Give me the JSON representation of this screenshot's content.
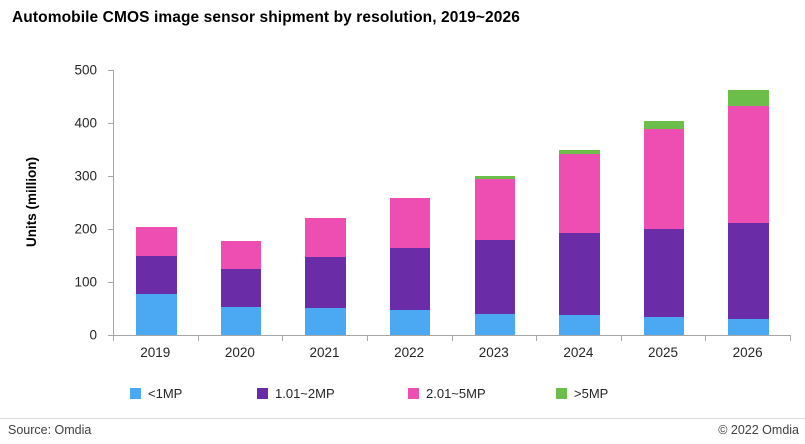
{
  "title": "Automobile CMOS image sensor shipment by resolution, 2019~2026",
  "footer": {
    "source": "Source: Omdia",
    "copyright": "© 2022 Omdia"
  },
  "colors": {
    "axis": "#A6A6A6",
    "series_lt1mp": "#4AA9F2",
    "series_1_2mp": "#6B2CA8",
    "series_2_5mp": "#EE4DB2",
    "series_gt5mp": "#6CBE4A"
  },
  "chart_data": {
    "type": "bar",
    "stacked": true,
    "title": "Automobile CMOS image sensor shipment by resolution, 2019~2026",
    "xlabel": "",
    "ylabel": "Units (million)",
    "ylim": [
      0,
      500
    ],
    "yticks": [
      0,
      100,
      200,
      300,
      400,
      500
    ],
    "grid": false,
    "legend_position": "bottom",
    "categories": [
      "2019",
      "2020",
      "2021",
      "2022",
      "2023",
      "2024",
      "2025",
      "2026"
    ],
    "series": [
      {
        "name": "<1MP",
        "color": "#4AA9F2",
        "values": [
          78,
          53,
          51,
          47,
          40,
          38,
          34,
          31
        ]
      },
      {
        "name": "1.01~2MP",
        "color": "#6B2CA8",
        "values": [
          72,
          71,
          96,
          118,
          139,
          154,
          166,
          181
        ]
      },
      {
        "name": "2.01~5MP",
        "color": "#EE4DB2",
        "values": [
          53,
          54,
          73,
          93,
          116,
          150,
          188,
          220
        ]
      },
      {
        "name": ">5MP",
        "color": "#6CBE4A",
        "values": [
          0,
          0,
          0,
          0,
          5,
          8,
          16,
          30
        ]
      }
    ],
    "totals": [
      203,
      178,
      220,
      258,
      300,
      350,
      404,
      462
    ]
  }
}
